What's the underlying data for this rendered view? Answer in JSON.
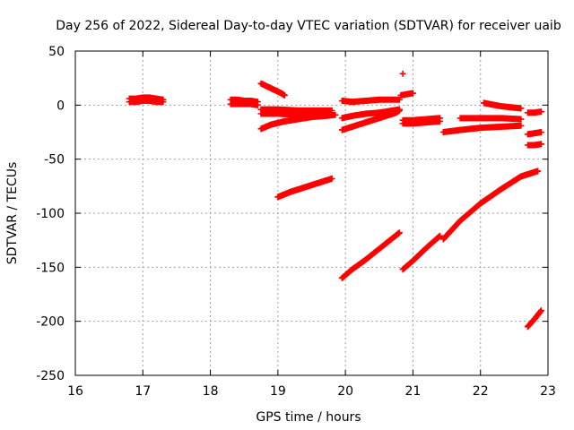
{
  "chart_data": {
    "type": "scatter",
    "title": "Day 256 of 2022, Sidereal Day-to-day VTEC variation (SDTVAR) for receiver uaib",
    "xlabel": "GPS time / hours",
    "ylabel": "SDTVAR / TECUs",
    "xlim": [
      16,
      23
    ],
    "ylim": [
      -250,
      50
    ],
    "xticks": [
      16,
      17,
      18,
      19,
      20,
      21,
      22,
      23
    ],
    "yticks": [
      50,
      0,
      -50,
      -100,
      -150,
      -200,
      -250
    ],
    "grid": true,
    "marker_color": "#ff0000",
    "series": [
      {
        "name": "s1",
        "x": [
          16.8,
          16.9,
          17.0,
          17.1,
          17.2,
          17.3
        ],
        "y": [
          6,
          6,
          7,
          7,
          6,
          5
        ]
      },
      {
        "name": "s2",
        "x": [
          16.8,
          16.9,
          17.0,
          17.1,
          17.2,
          17.3
        ],
        "y": [
          3,
          3,
          4,
          4,
          3,
          3
        ]
      },
      {
        "name": "s3",
        "x": [
          18.3,
          18.4,
          18.5,
          18.6,
          18.7
        ],
        "y": [
          5,
          5,
          4,
          4,
          3
        ]
      },
      {
        "name": "s4",
        "x": [
          18.3,
          18.4,
          18.5,
          18.6,
          18.7
        ],
        "y": [
          1,
          1,
          1,
          1,
          0
        ]
      },
      {
        "name": "s5",
        "x": [
          18.75,
          18.85,
          18.95,
          19.05,
          19.1
        ],
        "y": [
          20,
          17,
          14,
          11,
          9
        ]
      },
      {
        "name": "s6",
        "x": [
          18.75,
          19.0,
          19.3,
          19.6,
          19.8
        ],
        "y": [
          -4,
          -4,
          -5,
          -5,
          -5
        ]
      },
      {
        "name": "s7",
        "x": [
          18.75,
          19.0,
          19.3,
          19.6,
          19.8
        ],
        "y": [
          -8,
          -8,
          -9,
          -9,
          -9
        ]
      },
      {
        "name": "s8",
        "x": [
          18.75,
          18.9,
          19.1,
          19.3,
          19.5,
          19.7,
          19.85
        ],
        "y": [
          -22,
          -18,
          -15,
          -13,
          -11,
          -10,
          -9
        ]
      },
      {
        "name": "s9",
        "x": [
          19.0,
          19.2,
          19.4,
          19.6,
          19.8
        ],
        "y": [
          -85,
          -80,
          -76,
          -72,
          -68
        ]
      },
      {
        "name": "s10",
        "x": [
          19.95,
          20.1,
          20.3,
          20.5,
          20.7,
          20.8
        ],
        "y": [
          4,
          3,
          4,
          5,
          5,
          5
        ]
      },
      {
        "name": "s11",
        "x": [
          19.95,
          20.1,
          20.3,
          20.5,
          20.7,
          20.8
        ],
        "y": [
          -12,
          -10,
          -8,
          -7,
          -5,
          -4
        ]
      },
      {
        "name": "s12",
        "x": [
          19.95,
          20.15,
          20.35,
          20.55,
          20.75,
          20.8
        ],
        "y": [
          -23,
          -19,
          -15,
          -11,
          -7,
          -5
        ]
      },
      {
        "name": "s13",
        "x": [
          19.95,
          20.1,
          20.3,
          20.5,
          20.7,
          20.8
        ],
        "y": [
          -160,
          -152,
          -143,
          -133,
          -123,
          -118
        ]
      },
      {
        "name": "s14",
        "x": [
          20.82,
          20.9,
          21.0
        ],
        "y": [
          9,
          10,
          11
        ]
      },
      {
        "name": "s15",
        "x": [
          20.85
        ],
        "y": [
          29
        ]
      },
      {
        "name": "s16",
        "x": [
          20.85,
          21.0,
          21.2,
          21.4
        ],
        "y": [
          -14,
          -14,
          -13,
          -12
        ]
      },
      {
        "name": "s17",
        "x": [
          20.85,
          21.0,
          21.2,
          21.4
        ],
        "y": [
          -17,
          -17,
          -16,
          -15
        ]
      },
      {
        "name": "s18",
        "x": [
          20.85,
          21.0,
          21.2,
          21.4
        ],
        "y": [
          -152,
          -144,
          -132,
          -121
        ]
      },
      {
        "name": "s19",
        "x": [
          21.45,
          21.7,
          22.0,
          22.3,
          22.6
        ],
        "y": [
          -25,
          -23,
          -21,
          -20,
          -19
        ]
      },
      {
        "name": "s20",
        "x": [
          21.7,
          22.0,
          22.3,
          22.6
        ],
        "y": [
          -12,
          -12,
          -12,
          -13
        ]
      },
      {
        "name": "s21",
        "x": [
          21.45,
          21.7,
          22.0,
          22.3,
          22.6,
          22.85
        ],
        "y": [
          -124,
          -107,
          -91,
          -78,
          -66,
          -61
        ]
      },
      {
        "name": "s22",
        "x": [
          22.05,
          22.3,
          22.6
        ],
        "y": [
          2,
          -1,
          -3
        ]
      },
      {
        "name": "s23",
        "x": [
          22.7,
          22.8,
          22.9
        ],
        "y": [
          -7,
          -7,
          -6
        ]
      },
      {
        "name": "s24",
        "x": [
          22.7,
          22.8,
          22.9
        ],
        "y": [
          -27,
          -26,
          -25
        ]
      },
      {
        "name": "s25",
        "x": [
          22.7,
          22.8,
          22.9
        ],
        "y": [
          -37,
          -37,
          -36
        ]
      },
      {
        "name": "s26",
        "x": [
          22.7,
          22.8,
          22.9
        ],
        "y": [
          -205,
          -198,
          -190
        ]
      }
    ]
  }
}
